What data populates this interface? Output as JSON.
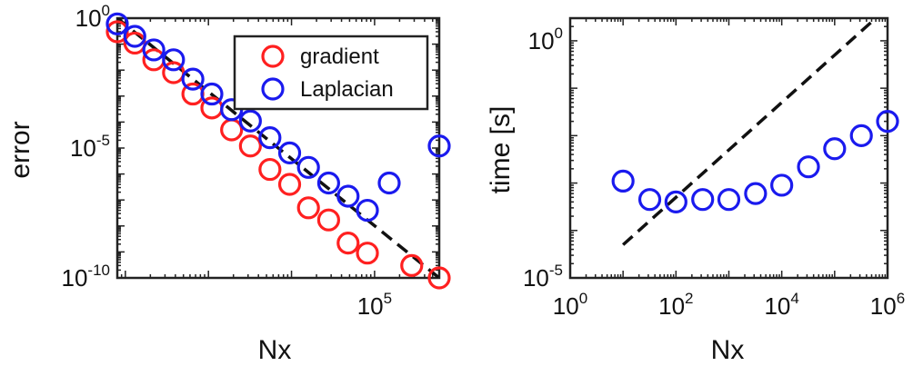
{
  "chart_data": [
    {
      "type": "scatter",
      "title": "",
      "xlabel": "Nx",
      "ylabel": "error",
      "x_scale": "log",
      "y_scale": "log",
      "xlim": [
        80,
        600000
      ],
      "ylim": [
        1e-10,
        1
      ],
      "x_ticks": [
        {
          "value": 100000,
          "base": "10",
          "exp": "5"
        }
      ],
      "y_ticks": [
        {
          "value": 1,
          "base": "10",
          "exp": "0"
        },
        {
          "value": 1e-05,
          "base": "10",
          "exp": "-5"
        },
        {
          "value": 1e-10,
          "base": "10",
          "exp": "-10"
        }
      ],
      "grid": false,
      "legend_position": "top-right",
      "series": [
        {
          "name": "gradient",
          "color": "#ff2020",
          "marker": "circle-open",
          "x": [
            80,
            130,
            220,
            380,
            650,
            1100,
            1900,
            3200,
            5500,
            9500,
            16000,
            28000,
            48000,
            82000,
            150000,
            280000,
            600000
          ],
          "y": [
            0.3,
            0.11,
            0.025,
            0.008,
            0.0012,
            0.00035,
            5e-05,
            1.2e-05,
            1.5e-06,
            4e-07,
            5e-08,
            1.7e-08,
            2.2e-09,
            9e-10,
            null,
            3e-10,
            1e-10
          ]
        },
        {
          "name": "Laplacian",
          "color": "#1a1aee",
          "marker": "circle-open",
          "x": [
            80,
            130,
            220,
            380,
            650,
            1100,
            1900,
            3200,
            5500,
            9500,
            16000,
            28000,
            48000,
            82000,
            150000,
            280000,
            600000
          ],
          "y": [
            0.6,
            0.2,
            0.06,
            0.025,
            0.0045,
            0.0012,
            0.0003,
            0.00011,
            2.5e-05,
            6.5e-06,
            1.8e-06,
            4.5e-07,
            1.4e-07,
            4e-08,
            4.5e-07,
            null,
            1.2e-05
          ]
        },
        {
          "name": "",
          "color": "#111111",
          "line": "dashed",
          "x": [
            80,
            600000
          ],
          "y": [
            1,
            1e-10
          ]
        }
      ]
    },
    {
      "type": "scatter",
      "title": "",
      "xlabel": "Nx",
      "ylabel": "time [s]",
      "x_scale": "log",
      "y_scale": "log",
      "xlim": [
        1,
        1000000
      ],
      "ylim": [
        1e-05,
        3
      ],
      "x_ticks": [
        {
          "value": 1,
          "base": "10",
          "exp": "0"
        },
        {
          "value": 100,
          "base": "10",
          "exp": "2"
        },
        {
          "value": 10000,
          "base": "10",
          "exp": "4"
        },
        {
          "value": 1000000,
          "base": "10",
          "exp": "6"
        }
      ],
      "y_ticks": [
        {
          "value": 1,
          "base": "10",
          "exp": "0"
        },
        {
          "value": 1e-05,
          "base": "10",
          "exp": "-5"
        }
      ],
      "grid": false,
      "series": [
        {
          "name": "",
          "color": "#1a1aee",
          "marker": "circle-open",
          "x": [
            10,
            32,
            100,
            320,
            1000,
            3200,
            10000,
            32000,
            100000,
            320000,
            1000000
          ],
          "y": [
            0.0011,
            0.00045,
            0.0004,
            0.00045,
            0.00045,
            0.0006,
            0.0009,
            0.0022,
            0.0053,
            0.01,
            0.02
          ]
        },
        {
          "name": "",
          "color": "#111111",
          "line": "dashed",
          "x": [
            10,
            1000000
          ],
          "y": 5e-05
        }
      ]
    }
  ]
}
